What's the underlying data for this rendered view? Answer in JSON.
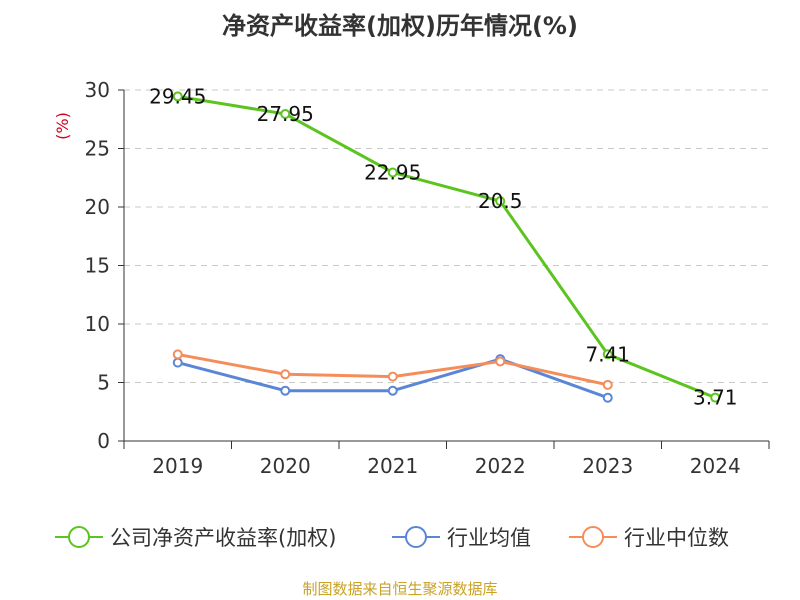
{
  "chart_data": {
    "type": "line",
    "title": "净资产收益率(加权)历年情况(%)",
    "ylabel": "(%)",
    "categories": [
      "2019",
      "2020",
      "2021",
      "2022",
      "2023",
      "2024"
    ],
    "ylim": [
      0,
      30
    ],
    "yticks": [
      0,
      5,
      10,
      15,
      20,
      25,
      30
    ],
    "grid": true,
    "legend_position": "bottom",
    "series": [
      {
        "name": "公司净资产收益率(加权)",
        "color": "#5cc41f",
        "values": [
          29.45,
          27.95,
          22.95,
          20.5,
          7.41,
          3.71
        ],
        "labels": [
          "29.45",
          "27.95",
          "22.95",
          "20.5",
          "7.41",
          "3.71"
        ]
      },
      {
        "name": "行业均值",
        "color": "#5b86d6",
        "values": [
          6.7,
          4.3,
          4.3,
          7.0,
          3.7,
          null
        ]
      },
      {
        "name": "行业中位数",
        "color": "#f58d5a",
        "values": [
          7.4,
          5.7,
          5.5,
          6.8,
          4.8,
          null
        ]
      }
    ]
  },
  "footer": {
    "source": "制图数据来自恒生聚源数据库"
  }
}
